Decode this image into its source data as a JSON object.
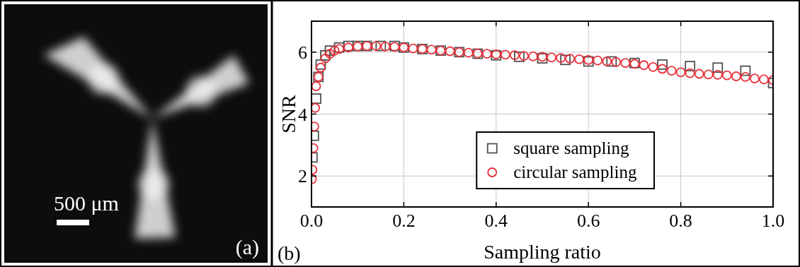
{
  "chart_data": [
    {
      "type": "image",
      "label": "(a)",
      "annotations": [
        "500 μm"
      ]
    },
    {
      "type": "scatter",
      "label": "(b)",
      "x_label": "Sampling ratio",
      "y_label": "SNR",
      "xlim": [
        0,
        1
      ],
      "xticks": [
        {
          "value": 0,
          "label": "0.0"
        },
        {
          "value": 0.2,
          "label": "0.2"
        },
        {
          "value": 0.4,
          "label": "0.4"
        },
        {
          "value": 0.6,
          "label": "0.6"
        },
        {
          "value": 0.8,
          "label": "0.8"
        },
        {
          "value": 1,
          "label": "1.0"
        }
      ],
      "ylim": [
        1,
        7
      ],
      "yticks": [
        2,
        4,
        6
      ],
      "grid": true,
      "legend": "bottom",
      "series": [
        {
          "name": "square sampling",
          "color": "#505050",
          "marker": "square",
          "x": [
            0.002,
            0.005,
            0.01,
            0.015,
            0.02,
            0.03,
            0.04,
            0.06,
            0.08,
            0.1,
            0.12,
            0.15,
            0.18,
            0.2,
            0.24,
            0.28,
            0.32,
            0.36,
            0.4,
            0.45,
            0.5,
            0.55,
            0.6,
            0.65,
            0.7,
            0.76,
            0.82,
            0.88,
            0.94,
            1.0
          ],
          "values": [
            2.6,
            3.3,
            4.5,
            5.2,
            5.6,
            5.9,
            6.05,
            6.15,
            6.2,
            6.2,
            6.2,
            6.2,
            6.2,
            6.15,
            6.1,
            6.05,
            6.0,
            5.95,
            5.9,
            5.85,
            5.8,
            5.75,
            5.7,
            5.7,
            5.65,
            5.6,
            5.55,
            5.5,
            5.4,
            5.0
          ]
        },
        {
          "name": "circular sampling",
          "color": "#e8323c",
          "marker": "circle",
          "x": [
            0.001,
            0.002,
            0.004,
            0.006,
            0.008,
            0.01,
            0.015,
            0.02,
            0.03,
            0.04,
            0.05,
            0.06,
            0.08,
            0.1,
            0.12,
            0.14,
            0.16,
            0.18,
            0.2,
            0.22,
            0.24,
            0.26,
            0.28,
            0.3,
            0.32,
            0.34,
            0.36,
            0.38,
            0.4,
            0.42,
            0.44,
            0.46,
            0.48,
            0.5,
            0.52,
            0.54,
            0.56,
            0.58,
            0.6,
            0.62,
            0.64,
            0.66,
            0.68,
            0.7,
            0.72,
            0.74,
            0.76,
            0.78,
            0.8,
            0.82,
            0.84,
            0.86,
            0.88,
            0.9,
            0.92,
            0.94,
            0.96,
            0.98,
            1.0
          ],
          "values": [
            1.9,
            2.2,
            2.9,
            3.6,
            4.2,
            4.9,
            5.2,
            5.5,
            5.8,
            5.95,
            6.05,
            6.1,
            6.15,
            6.18,
            6.2,
            6.2,
            6.18,
            6.17,
            6.15,
            6.12,
            6.1,
            6.08,
            6.05,
            6.03,
            6.0,
            5.98,
            5.96,
            5.95,
            5.93,
            5.92,
            5.9,
            5.88,
            5.86,
            5.85,
            5.83,
            5.81,
            5.79,
            5.77,
            5.75,
            5.73,
            5.7,
            5.68,
            5.65,
            5.62,
            5.58,
            5.52,
            5.46,
            5.4,
            5.35,
            5.32,
            5.3,
            5.28,
            5.27,
            5.25,
            5.22,
            5.2,
            5.15,
            5.12,
            5.1
          ]
        }
      ]
    }
  ]
}
